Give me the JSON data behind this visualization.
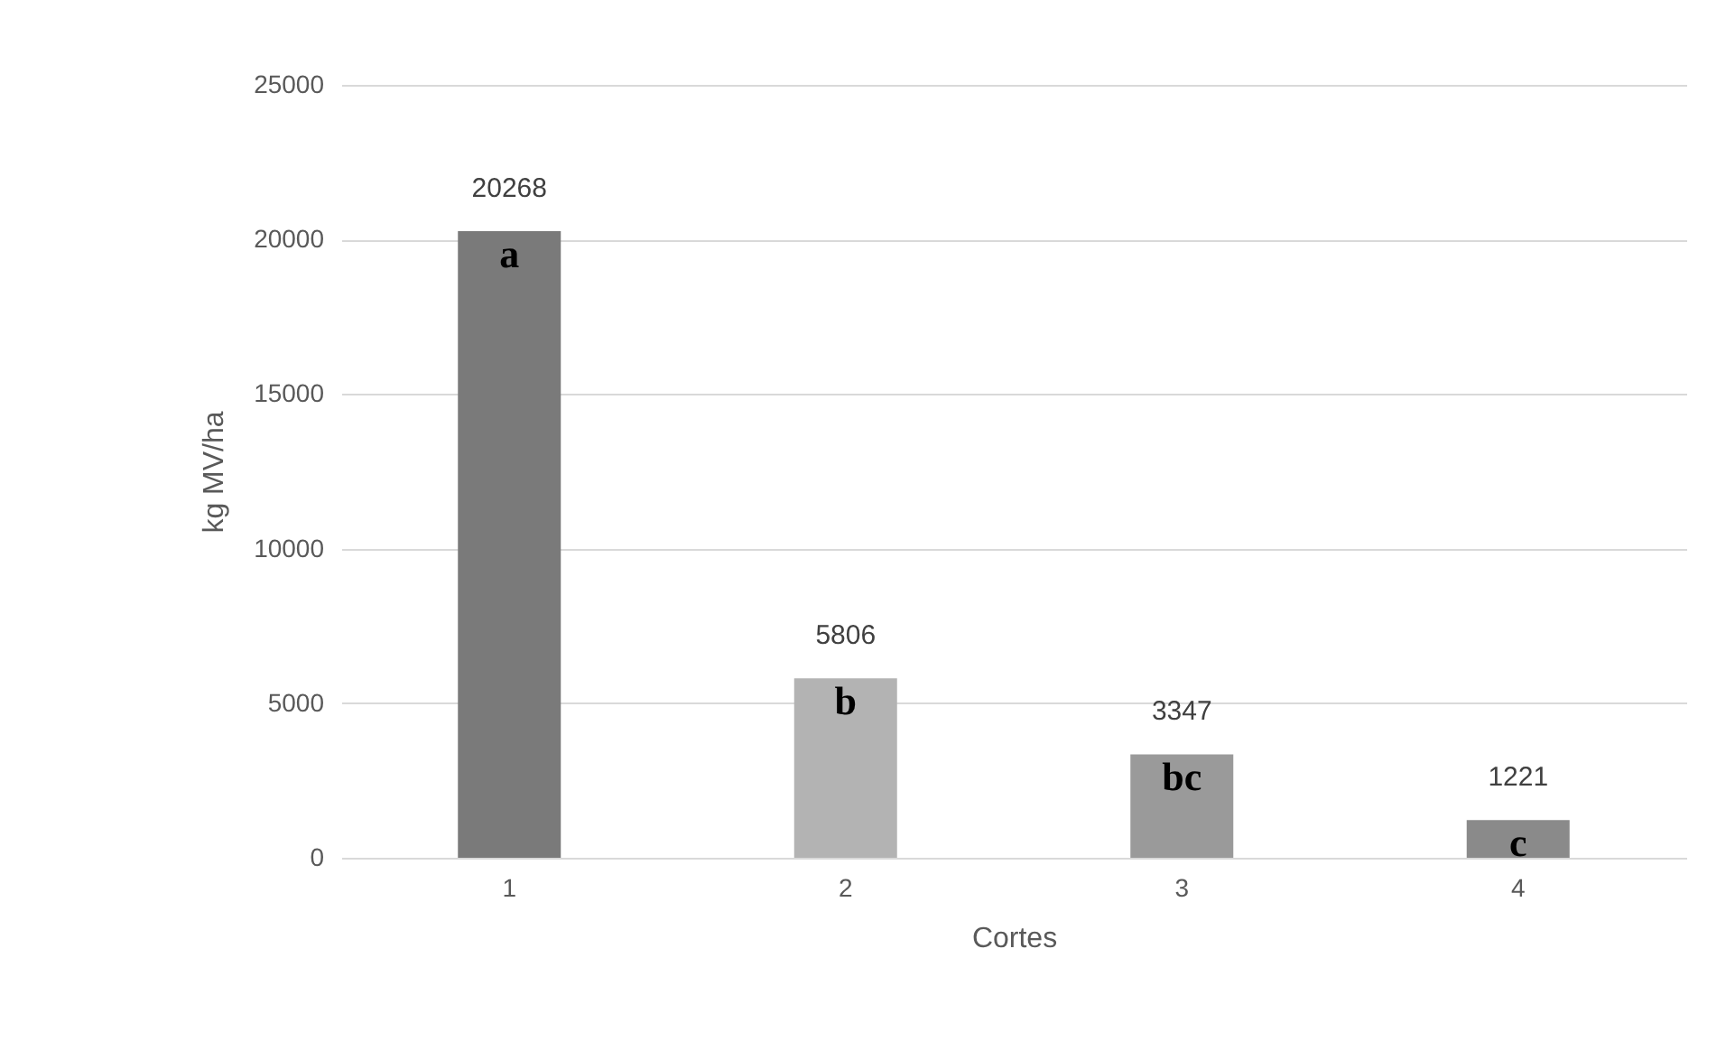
{
  "chart_data": {
    "type": "bar",
    "xlabel": "Cortes",
    "ylabel": "kg MV/ha",
    "categories": [
      "1",
      "2",
      "3",
      "4"
    ],
    "values": [
      20268,
      5806,
      3347,
      1221
    ],
    "colors": [
      "#7a7a7a",
      "#b3b3b3",
      "#9a9a9a",
      "#8a8a8a"
    ],
    "ylim": [
      0,
      25000
    ],
    "yticks": [
      0,
      5000,
      10000,
      15000,
      20000,
      25000
    ],
    "grid": "y",
    "data_labels": true,
    "annotations": [
      {
        "text": "a",
        "x": "1",
        "y": 20268
      },
      {
        "text": "b",
        "x": "2",
        "y": 5806
      },
      {
        "text": "bc",
        "x": "3",
        "y": 3347
      },
      {
        "text": "c",
        "x": "4",
        "y": 1221
      }
    ]
  }
}
